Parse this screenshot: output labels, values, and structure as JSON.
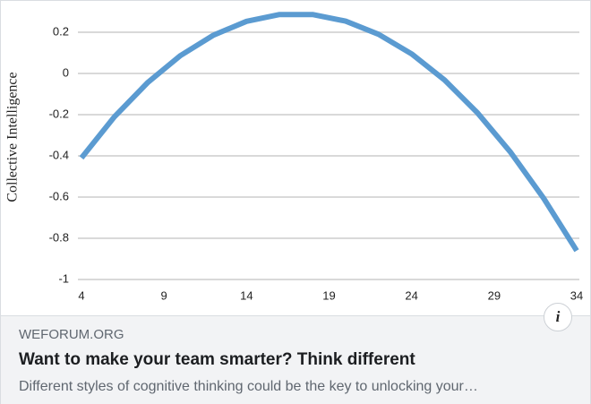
{
  "chart_data": {
    "type": "line",
    "y_label": "Collective Intelligence",
    "x": [
      4,
      6,
      8,
      10,
      12,
      14,
      16,
      18,
      20,
      22,
      24,
      26,
      28,
      30,
      32,
      34
    ],
    "series": [
      {
        "color": "#5b9bd1",
        "values": [
          -0.41,
          -0.21,
          -0.045,
          0.087,
          0.186,
          0.253,
          0.286,
          0.286,
          0.254,
          0.19,
          0.095,
          -0.032,
          -0.192,
          -0.383,
          -0.606,
          -0.86
        ]
      }
    ],
    "xlim": [
      4,
      34
    ],
    "xticks": [
      4,
      9,
      14,
      19,
      24,
      29,
      34
    ],
    "ylim": [
      -1,
      0.3
    ],
    "yticks": [
      0.2,
      0,
      -0.2,
      -0.4,
      -0.6,
      -0.8,
      -1
    ],
    "grid": true
  },
  "link": {
    "domain": "WEFORUM.ORG",
    "title": "Want to make your team smarter? Think different",
    "description": "Different styles of cognitive thinking could be the key to unlocking your…",
    "info_button": "i"
  }
}
